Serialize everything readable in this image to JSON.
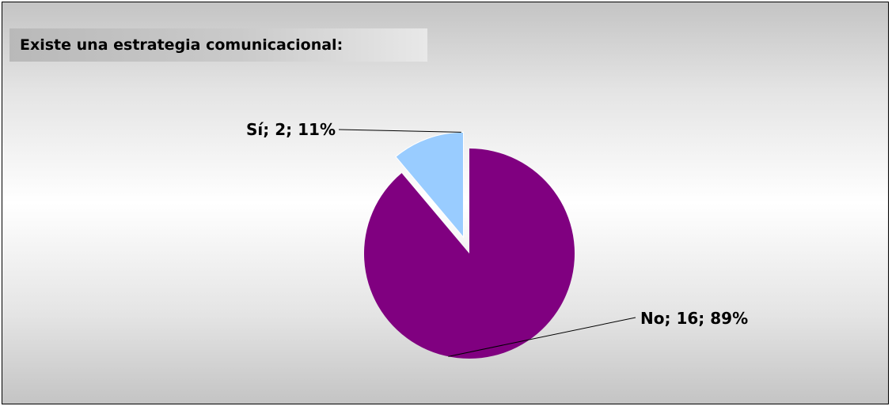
{
  "chart_data": {
    "type": "pie",
    "title": "Existe una estrategia comunicacional:",
    "slices": [
      {
        "name": "No",
        "value": 16,
        "percent": 89,
        "color": "#800080",
        "label": "No; 16; 89%",
        "exploded": false
      },
      {
        "name": "Sí",
        "value": 2,
        "percent": 11,
        "color": "#99ccff",
        "label": "Sí; 2; 11%",
        "exploded": true
      }
    ],
    "legend": "none",
    "start_angle": "12 o'clock, clockwise"
  }
}
